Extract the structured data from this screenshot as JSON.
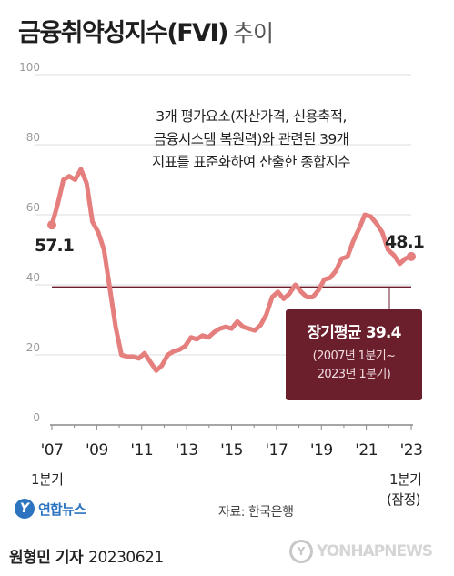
{
  "header": {
    "title": "금융취약성지수(FVI)",
    "subtitle": "추이"
  },
  "description_lines": [
    "3개 평가요소(자산가격, 신용축적,",
    "금융시스템 복원력)와 관련된 39개",
    "지표를 표준화하여 산출한 종합지수"
  ],
  "callout": {
    "line1": "장기평균 39.4",
    "line2": "(2007년 1분기~",
    "line3": "2023년 1분기)"
  },
  "x_notes": {
    "start": "1분기",
    "end_line1": "1분기",
    "end_line2": "(잠정)"
  },
  "logo": {
    "symbol": "Y",
    "name": "연합뉴스"
  },
  "source": "자료: 한국은행",
  "footer": {
    "reporter": "원형민 기자",
    "date": "20230621"
  },
  "watermark": {
    "symbol": "Y",
    "text": "YONHAPNEWS"
  },
  "colors": {
    "line": "#e57f7d",
    "avg_line": "#6b1f2c",
    "callout_bg": "#6b1f2c",
    "axis": "#888888",
    "grid": "#dddddd"
  },
  "chart_data": {
    "type": "line",
    "title": "금융취약성지수(FVI) 추이",
    "xlabel": "",
    "ylabel": "",
    "ylim": [
      0,
      100
    ],
    "yticks": [
      0,
      20,
      40,
      60,
      80,
      100
    ],
    "xtick_labels": [
      "'07",
      "'09",
      "'11",
      "'13",
      "'15",
      "'17",
      "'19",
      "'21",
      "'23"
    ],
    "x_start": "2007 Q1",
    "x_end": "2023 Q1",
    "grid": true,
    "long_term_average": 39.4,
    "start_label": "57.1",
    "end_label": "48.1",
    "series": [
      {
        "values": [
          57.1,
          63,
          70,
          71,
          70,
          73,
          69,
          58,
          55,
          50,
          39,
          28,
          20,
          19.5,
          19.5,
          19,
          20.5,
          18,
          15.5,
          17,
          20,
          21,
          21.5,
          22.5,
          25,
          24.5,
          25.5,
          25,
          26.5,
          27.5,
          28,
          27.5,
          29.5,
          28,
          27.5,
          27,
          28.5,
          31.5,
          36.5,
          38,
          36,
          37.5,
          40,
          38,
          36.5,
          36.5,
          38.5,
          41.5,
          42,
          44,
          47.5,
          48,
          52.5,
          56,
          60,
          59.5,
          57.5,
          55,
          50,
          48.5,
          46,
          47.5,
          48.1
        ]
      }
    ]
  }
}
